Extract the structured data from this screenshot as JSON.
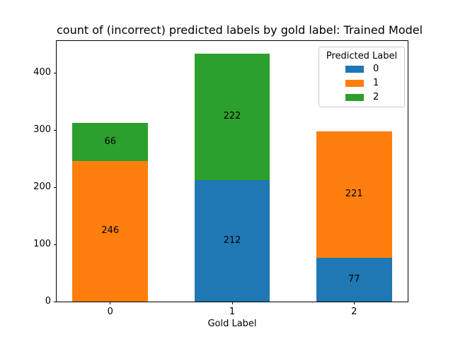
{
  "figure": {
    "kind": "matplotlib-stacked-bar-figure"
  },
  "chart_data": {
    "type": "bar",
    "stacked": true,
    "title": "count of (incorrect) predicted labels by gold label: Trained Model",
    "xlabel": "Gold Label",
    "ylabel": "",
    "categories": [
      "0",
      "1",
      "2"
    ],
    "series": [
      {
        "name": "0",
        "color": "#1f77b4",
        "values": [
          0,
          212,
          77
        ]
      },
      {
        "name": "1",
        "color": "#ff7f0e",
        "values": [
          246,
          0,
          221
        ]
      },
      {
        "name": "2",
        "color": "#2ca02c",
        "values": [
          66,
          222,
          0
        ]
      }
    ],
    "bar_value_labels": {
      "0": {
        "1": 246,
        "2": 66
      },
      "1": {
        "0": 212,
        "2": 222
      },
      "2": {
        "0": 77,
        "1": 221
      }
    },
    "yticks": [
      0,
      100,
      200,
      300,
      400
    ],
    "ylim": [
      0,
      455.7
    ],
    "xlim": [
      -0.44,
      2.44
    ],
    "bar_width": 0.62,
    "grid": false,
    "legend": {
      "title": "Predicted Label",
      "position": "upper right"
    },
    "colors": {
      "blue": "#1f77b4",
      "orange": "#ff7f0e",
      "green": "#2ca02c",
      "axis": "#000000",
      "legend_border": "#cccccc"
    }
  }
}
